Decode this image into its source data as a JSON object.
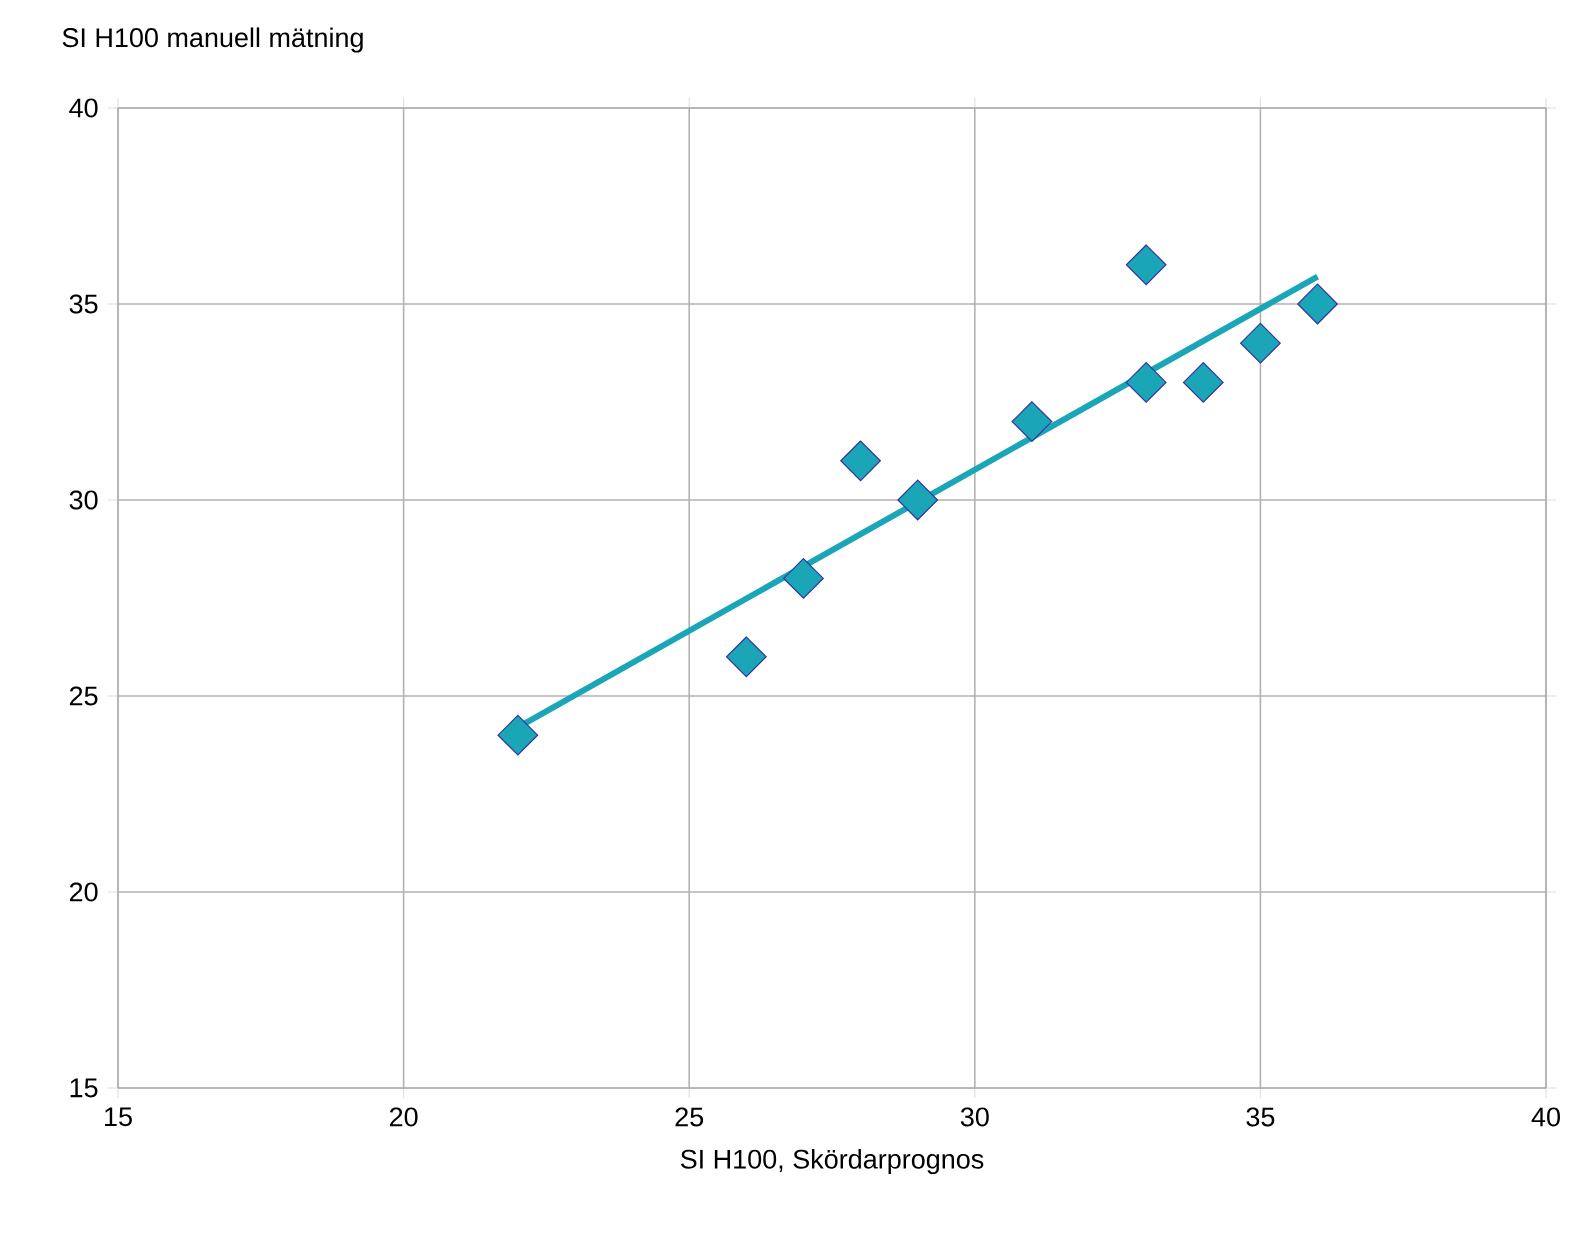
{
  "chart_data": {
    "type": "scatter",
    "xlabel": "SI H100, Skördarprognos",
    "ylabel": "SI H100 manuell mätning",
    "xlim": [
      15,
      40
    ],
    "ylim": [
      15,
      40
    ],
    "xticks": [
      15,
      20,
      25,
      30,
      35,
      40
    ],
    "yticks": [
      15,
      20,
      25,
      30,
      35,
      40
    ],
    "grid": true,
    "legend": false,
    "series": [
      {
        "color": "#1ba6b8",
        "marker": "diamond",
        "x": [
          22,
          26,
          27,
          28,
          29,
          31,
          33,
          33,
          34,
          35,
          36
        ],
        "values": [
          24,
          26,
          28,
          31,
          30,
          32,
          36,
          33,
          33,
          34,
          35
        ]
      },
      {
        "type": "line",
        "color": "#1ba6b8",
        "marker": "none",
        "x": [
          22,
          36
        ],
        "values": [
          24.2,
          35.7
        ]
      }
    ]
  }
}
